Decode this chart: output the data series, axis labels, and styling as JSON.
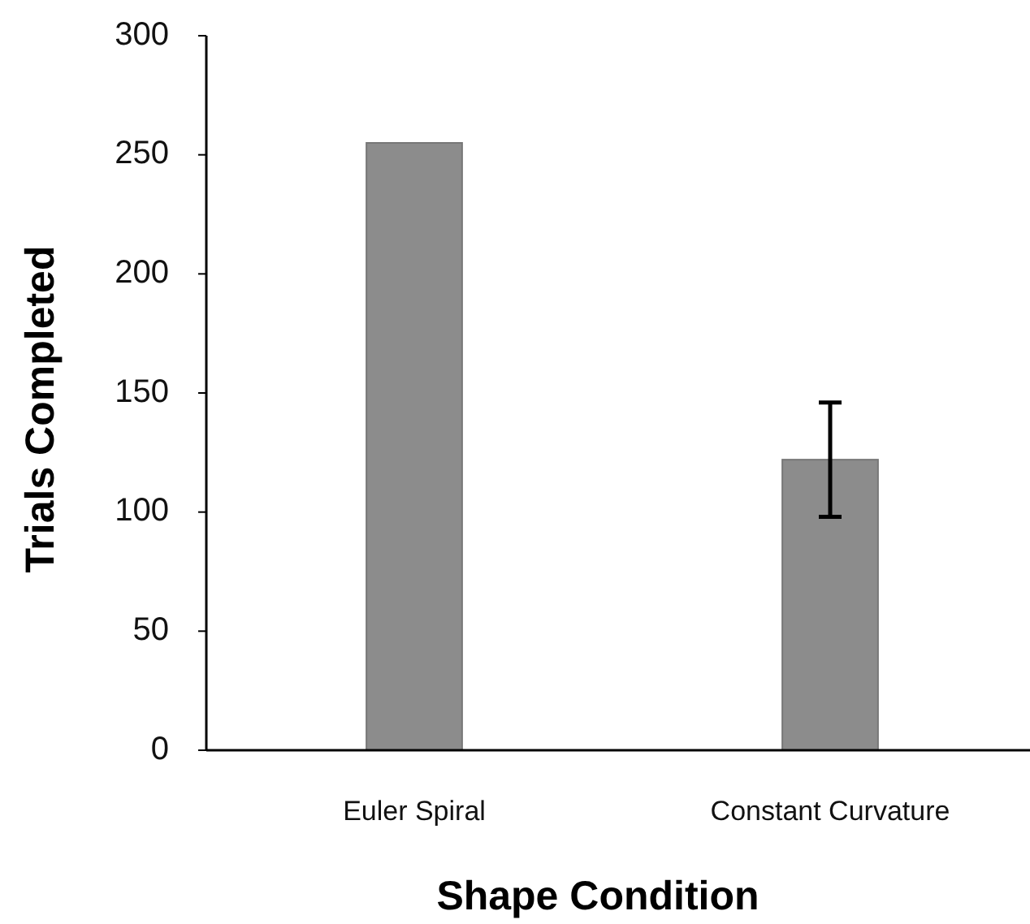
{
  "chart_data": {
    "type": "bar",
    "xlabel": "Shape Condition",
    "ylabel": "Trials Completed",
    "categories": [
      "Euler Spiral",
      "Constant Curvature"
    ],
    "values": [
      255,
      122
    ],
    "errors": [
      null,
      24
    ],
    "color": "#8c8c8c",
    "ylim": [
      0,
      300
    ],
    "yticks": [
      0,
      50,
      100,
      150,
      200,
      250,
      300
    ],
    "grid": false
  }
}
